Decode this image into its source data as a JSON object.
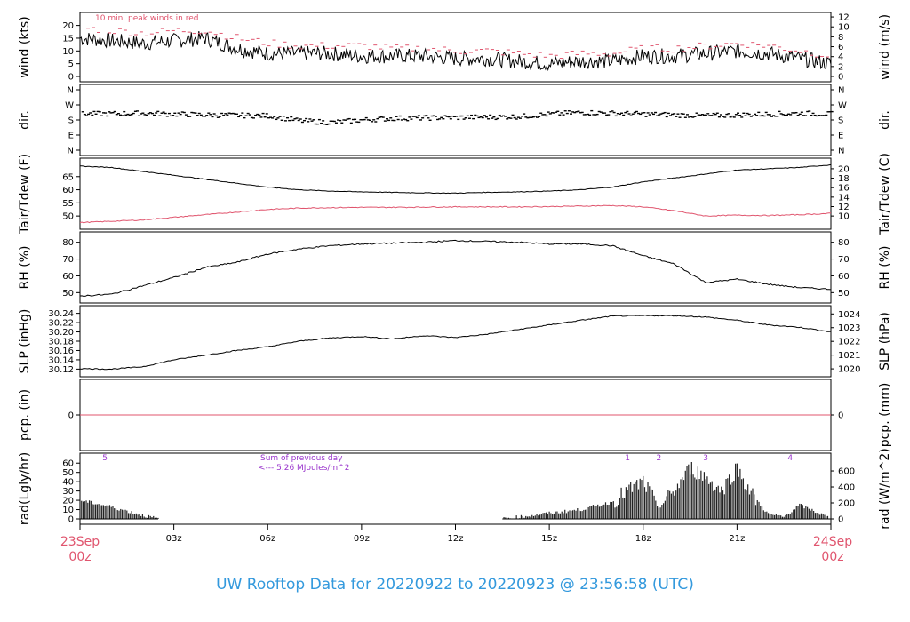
{
  "title": "UW Rooftop Data for 20220922  to  20220923 @ 23:56:58  (UTC)",
  "x_axis": {
    "start_label_top": "23Sep",
    "start_label_bottom": "00z",
    "end_label_top": "24Sep",
    "end_label_bottom": "00z",
    "ticks": [
      "03z",
      "06z",
      "09z",
      "12z",
      "15z",
      "18z",
      "21z"
    ],
    "label_color": "#e0556e"
  },
  "colors": {
    "dew": "#e0556e",
    "note_purple": "#9933cc",
    "title": "#3399dd"
  },
  "panels": {
    "wind": {
      "left_label": "wind (kts)",
      "right_label": "wind (m/s)",
      "left_ticks": [
        "0",
        "5",
        "10",
        "15",
        "20"
      ],
      "right_ticks": [
        "0",
        "2",
        "4",
        "6",
        "8",
        "10",
        "12"
      ],
      "note": "10 min. peak winds in red"
    },
    "dir": {
      "left_label": "dir.",
      "right_label": "dir.",
      "left_ticks": [
        "N",
        "E",
        "S",
        "W",
        "N"
      ],
      "right_ticks": [
        "N",
        "E",
        "S",
        "W",
        "N"
      ]
    },
    "temp": {
      "left_label": "Tair/Tdew (F)",
      "right_label": "Tair/Tdew (C)",
      "left_ticks": [
        "50",
        "55",
        "60",
        "65"
      ],
      "right_ticks": [
        "10",
        "12",
        "14",
        "16",
        "18",
        "20"
      ]
    },
    "rh": {
      "left_label": "RH (%)",
      "right_label": "RH (%)",
      "left_ticks": [
        "50",
        "60",
        "70",
        "80"
      ],
      "right_ticks": [
        "50",
        "60",
        "70",
        "80"
      ]
    },
    "slp": {
      "left_label": "SLP (inHg)",
      "right_label": "SLP (hPa)",
      "left_ticks": [
        "30.12",
        "30.14",
        "30.16",
        "30.18",
        "30.20",
        "30.22",
        "30.24"
      ],
      "right_ticks": [
        "1020",
        "1021",
        "1022",
        "1023",
        "1024"
      ]
    },
    "pcp": {
      "left_label": "pcp. (in)",
      "right_label": "pcp. (mm)",
      "left_ticks": [
        "0"
      ],
      "right_ticks": [
        "0"
      ]
    },
    "rad": {
      "left_label": "rad(Lgly/hr)",
      "right_label": "rad (W/m^2)",
      "left_ticks": [
        "0",
        "10",
        "20",
        "30",
        "40",
        "50",
        "60"
      ],
      "right_ticks": [
        "0",
        "200",
        "400",
        "600"
      ],
      "note_line1": "Sum of previous day",
      "note_line2": "<--- 5.26 MJoules/m^2",
      "markers": [
        "5",
        "1",
        "2",
        "3",
        "4"
      ]
    }
  },
  "chart_data": {
    "type": "line",
    "x_unit": "hours UTC from 23Sep 00z",
    "xlim": [
      0,
      24
    ],
    "wind_kts": {
      "ylim": [
        0,
        23
      ],
      "x": [
        0,
        1,
        2,
        3,
        4,
        5,
        6,
        7,
        8,
        9,
        10,
        11,
        12,
        13,
        14,
        15,
        16,
        17,
        18,
        19,
        20,
        21,
        22,
        23,
        24
      ],
      "mean": [
        15,
        14,
        13,
        14,
        15,
        11,
        9,
        9,
        9,
        8,
        8,
        8,
        7,
        7,
        6,
        5,
        6,
        6,
        8,
        8,
        9,
        10,
        9,
        7,
        5
      ],
      "peak": [
        19,
        18,
        17,
        18,
        18,
        15,
        13,
        12,
        12,
        12,
        11,
        11,
        10,
        10,
        9,
        8,
        9,
        9,
        11,
        11,
        12,
        13,
        12,
        10,
        8
      ]
    },
    "wind_dir": {
      "categories": [
        "N",
        "E",
        "S",
        "W",
        "N"
      ],
      "x": [
        0,
        2,
        4,
        6,
        7,
        8,
        9,
        10,
        12,
        14,
        15,
        16,
        18,
        19,
        20,
        21,
        22,
        23,
        24
      ],
      "deg": [
        215,
        220,
        210,
        205,
        175,
        165,
        180,
        190,
        195,
        200,
        215,
        225,
        215,
        210,
        205,
        210,
        215,
        220,
        215
      ]
    },
    "temperature_F": {
      "ylim": [
        47,
        70
      ],
      "x": [
        0,
        1,
        2,
        3,
        4,
        5,
        6,
        7,
        8,
        9,
        10,
        11,
        12,
        13,
        14,
        15,
        16,
        17,
        18,
        19,
        20,
        21,
        22,
        23,
        24
      ],
      "tair": [
        69,
        68.5,
        67,
        65.5,
        64,
        62.5,
        61,
        60,
        59.5,
        59.2,
        59,
        58.8,
        58.7,
        59,
        59.2,
        59.5,
        60,
        61,
        63,
        64.5,
        66,
        67.5,
        68,
        68.5,
        69.5
      ],
      "tdew": [
        47.5,
        48,
        48.5,
        49.5,
        50.5,
        51.5,
        52.5,
        53,
        53.2,
        53.3,
        53.3,
        53.4,
        53.5,
        53.5,
        53.5,
        53.6,
        53.8,
        54,
        53.5,
        52,
        50,
        50.3,
        50.2,
        50.5,
        51
      ]
    },
    "rh_pct": {
      "ylim": [
        47,
        83
      ],
      "x": [
        0,
        1,
        2,
        3,
        4,
        5,
        6,
        7,
        8,
        9,
        10,
        11,
        12,
        13,
        14,
        15,
        16,
        17,
        18,
        19,
        20,
        21,
        22,
        23,
        24
      ],
      "values": [
        48,
        49,
        54,
        59,
        65,
        68,
        73,
        76,
        78,
        79,
        79.5,
        80,
        81,
        80.5,
        80,
        79,
        79,
        78,
        72,
        67,
        56,
        58,
        55,
        53,
        52
      ]
    },
    "slp_inHg": {
      "ylim": [
        30.115,
        30.245
      ],
      "x": [
        0,
        1,
        2,
        3,
        4,
        5,
        6,
        7,
        8,
        9,
        10,
        11,
        12,
        13,
        14,
        15,
        16,
        17,
        18,
        19,
        20,
        21,
        22,
        23,
        24
      ],
      "values": [
        30.121,
        30.12,
        30.125,
        30.14,
        30.15,
        30.16,
        30.168,
        30.18,
        30.187,
        30.19,
        30.185,
        30.192,
        30.188,
        30.195,
        30.205,
        30.215,
        30.225,
        30.234,
        30.235,
        30.235,
        30.232,
        30.225,
        30.215,
        30.21,
        30.2
      ]
    },
    "precip_in": {
      "ylim": [
        -0.5,
        0.5
      ],
      "x": [
        0,
        24
      ],
      "values": [
        0,
        0
      ]
    },
    "radiation_lgly_hr": {
      "ylim": [
        0,
        65
      ],
      "x": [
        0,
        1,
        2,
        2.5,
        13.5,
        14,
        15,
        16,
        17,
        17.5,
        18,
        18.5,
        19,
        19.5,
        20,
        20.5,
        21,
        21.5,
        22,
        22.5,
        23,
        23.5,
        24
      ],
      "values": [
        20,
        13,
        4,
        0,
        0,
        2,
        6,
        10,
        18,
        30,
        40,
        12,
        30,
        55,
        45,
        30,
        55,
        25,
        5,
        2,
        15,
        8,
        0
      ]
    }
  }
}
